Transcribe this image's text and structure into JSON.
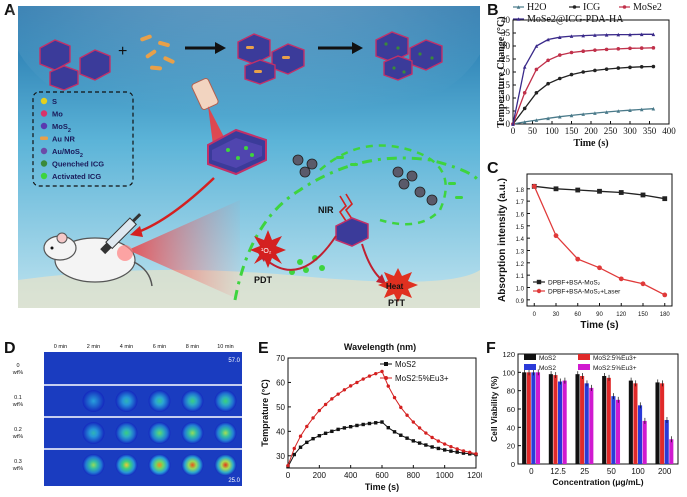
{
  "panel_letters": {
    "A": "A",
    "B": "B",
    "C": "C",
    "D": "D",
    "E": "E",
    "F": "F"
  },
  "panelA": {
    "legend": [
      {
        "label": "S",
        "color": "#e4d01e"
      },
      {
        "label": "Mo",
        "color": "#d8336a"
      },
      {
        "label": "MoS",
        "sub": "2",
        "color": "#5a3ab0"
      },
      {
        "label": "Au NR",
        "color": "#e8a04a"
      },
      {
        "label": "Au/MoS",
        "sub": "2",
        "color": "#6b4aa8"
      },
      {
        "label": "Quenched ICG",
        "color": "#3a8a3a"
      },
      {
        "label": "Activated ICG",
        "color": "#3ed43e"
      }
    ],
    "plus": "+",
    "nir": "NIR",
    "pdt": "PDT",
    "ptt": "PTT",
    "o2": "¹O₂",
    "heat": "Heat"
  },
  "chart_data": [
    {
      "panel": "B",
      "type": "line",
      "xlabel": "Time (s)",
      "ylabel": "Temperature Change (°C)",
      "xlim": [
        0,
        400
      ],
      "ylim": [
        0,
        40
      ],
      "xticks": [
        0,
        50,
        100,
        150,
        200,
        250,
        300,
        350,
        400
      ],
      "yticks": [
        0,
        5,
        10,
        15,
        20,
        25,
        30,
        35,
        40
      ],
      "x": [
        0,
        30,
        60,
        90,
        120,
        150,
        180,
        210,
        240,
        270,
        300,
        330,
        360
      ],
      "series": [
        {
          "name": "H2O",
          "color": "#4a7a8a",
          "marker": "tri",
          "values": [
            0,
            0.8,
            1.5,
            2.2,
            2.8,
            3.3,
            3.8,
            4.2,
            4.6,
            5.0,
            5.3,
            5.6,
            5.9
          ]
        },
        {
          "name": "ICG",
          "color": "#222222",
          "marker": "circle",
          "values": [
            0,
            6,
            12,
            15.5,
            17.5,
            19,
            20,
            20.6,
            21.1,
            21.5,
            21.8,
            22.0,
            22.1
          ]
        },
        {
          "name": "MoSe2",
          "color": "#c0304a",
          "marker": "circle",
          "values": [
            0,
            12,
            21,
            24.5,
            26.5,
            27.5,
            28,
            28.4,
            28.7,
            28.9,
            29.1,
            29.2,
            29.3
          ]
        },
        {
          "name": "MoSe2@ICG-PDA-HA",
          "color": "#3a2a8a",
          "marker": "tri",
          "values": [
            0,
            22,
            30,
            32.5,
            33.4,
            33.8,
            34,
            34.2,
            34.3,
            34.4,
            34.4,
            34.5,
            34.5
          ]
        }
      ]
    },
    {
      "panel": "C",
      "type": "line",
      "xlabel": "Time (s)",
      "ylabel": "Absorption intensity (a.u.)",
      "xlim": [
        -10,
        190
      ],
      "ylim": [
        0.85,
        1.92
      ],
      "xticks": [
        0,
        30,
        60,
        90,
        120,
        150,
        180
      ],
      "yticks": [
        0.9,
        1.0,
        1.1,
        1.2,
        1.3,
        1.4,
        1.5,
        1.6,
        1.7,
        1.8
      ],
      "x": [
        0,
        30,
        60,
        90,
        120,
        150,
        180
      ],
      "series": [
        {
          "name": "DPBF+BSA-MoS2",
          "color": "#222222",
          "marker": "square",
          "values": [
            1.82,
            1.8,
            1.79,
            1.78,
            1.77,
            1.75,
            1.72
          ]
        },
        {
          "name": "DPBF+BSA-MoS2+Laser",
          "color": "#e03a3a",
          "marker": "circle",
          "values": [
            1.82,
            1.42,
            1.23,
            1.16,
            1.07,
            1.03,
            0.94
          ]
        }
      ]
    },
    {
      "panel": "E",
      "type": "line",
      "title": "Wavelength (nm)",
      "xlabel": "Time (s)",
      "ylabel": "Temprature (°C)",
      "xlim": [
        0,
        1200
      ],
      "ylim": [
        25,
        70
      ],
      "xticks": [
        0,
        200,
        400,
        600,
        800,
        1000,
        1200
      ],
      "yticks": [
        30,
        40,
        50,
        60,
        70
      ],
      "series": [
        {
          "name": "MoS2",
          "color": "#111111",
          "marker": "square",
          "x": [
            0,
            40,
            80,
            120,
            160,
            200,
            240,
            280,
            320,
            360,
            400,
            440,
            480,
            520,
            560,
            600,
            640,
            680,
            720,
            760,
            800,
            840,
            880,
            920,
            960,
            1000,
            1040,
            1080,
            1120,
            1160,
            1200
          ],
          "values": [
            25.5,
            30.5,
            33.5,
            35.5,
            37,
            38.2,
            39.2,
            40,
            40.8,
            41.4,
            41.9,
            42.4,
            42.8,
            43.2,
            43.5,
            43.8,
            41.5,
            39.8,
            38.4,
            37.2,
            36.1,
            35.2,
            34.4,
            33.6,
            33,
            32.4,
            31.9,
            31.5,
            31.1,
            30.8,
            30.5
          ]
        },
        {
          "name": "MoS2:5%Eu3+",
          "color": "#d42020",
          "marker": "circle",
          "x": [
            0,
            40,
            80,
            120,
            160,
            200,
            240,
            280,
            320,
            360,
            400,
            440,
            480,
            520,
            560,
            600,
            640,
            680,
            720,
            760,
            800,
            840,
            880,
            920,
            960,
            1000,
            1040,
            1080,
            1120,
            1160,
            1200
          ],
          "values": [
            26,
            33,
            38,
            42,
            45.5,
            48.5,
            51,
            53.3,
            55.2,
            57,
            58.6,
            60,
            61.4,
            62.6,
            63.6,
            64.5,
            58.5,
            53.8,
            49.8,
            46.6,
            43.8,
            41.4,
            39.3,
            37.5,
            36,
            34.8,
            33.7,
            32.8,
            32,
            31.4,
            30.8
          ]
        }
      ]
    },
    {
      "panel": "F",
      "type": "bar",
      "xlabel": "Concentration (μg/mL)",
      "ylabel": "Cell Viability (%)",
      "ylim": [
        0,
        120
      ],
      "yticks": [
        0,
        20,
        40,
        60,
        80,
        100,
        120
      ],
      "categories": [
        "0",
        "12.5",
        "25",
        "50",
        "100",
        "200"
      ],
      "series": [
        {
          "name": "MoS2",
          "color": "#111111",
          "values": [
            100,
            98,
            98,
            96,
            91,
            89
          ]
        },
        {
          "name": "MoS2:5%Eu3+",
          "color": "#e02a2a",
          "values": [
            100,
            97,
            96,
            94,
            88,
            88
          ]
        },
        {
          "name": "MoS2 ",
          "color": "#2a3ad8",
          "values": [
            100,
            90,
            88,
            74,
            64,
            48
          ]
        },
        {
          "name": "MoS2:5%Eu3+ ",
          "color": "#d01ad0",
          "values": [
            100,
            91,
            83,
            70,
            47,
            27
          ]
        }
      ]
    }
  ],
  "panelD": {
    "columns": [
      "0 min",
      "2 min",
      "4 min",
      "6 min",
      "8 min",
      "10 min"
    ],
    "rows": [
      "0\nwt%",
      "0.1\nwt%",
      "0.2\nwt%",
      "0.3\nwt%"
    ],
    "scale_max": "57.0",
    "scale_min": "25.0",
    "intensity": [
      [
        0,
        0,
        0,
        0,
        0,
        0
      ],
      [
        0,
        0.25,
        0.35,
        0.42,
        0.48,
        0.5
      ],
      [
        0,
        0.35,
        0.48,
        0.55,
        0.6,
        0.62
      ],
      [
        0,
        0.6,
        0.75,
        0.85,
        0.92,
        0.96
      ]
    ]
  }
}
